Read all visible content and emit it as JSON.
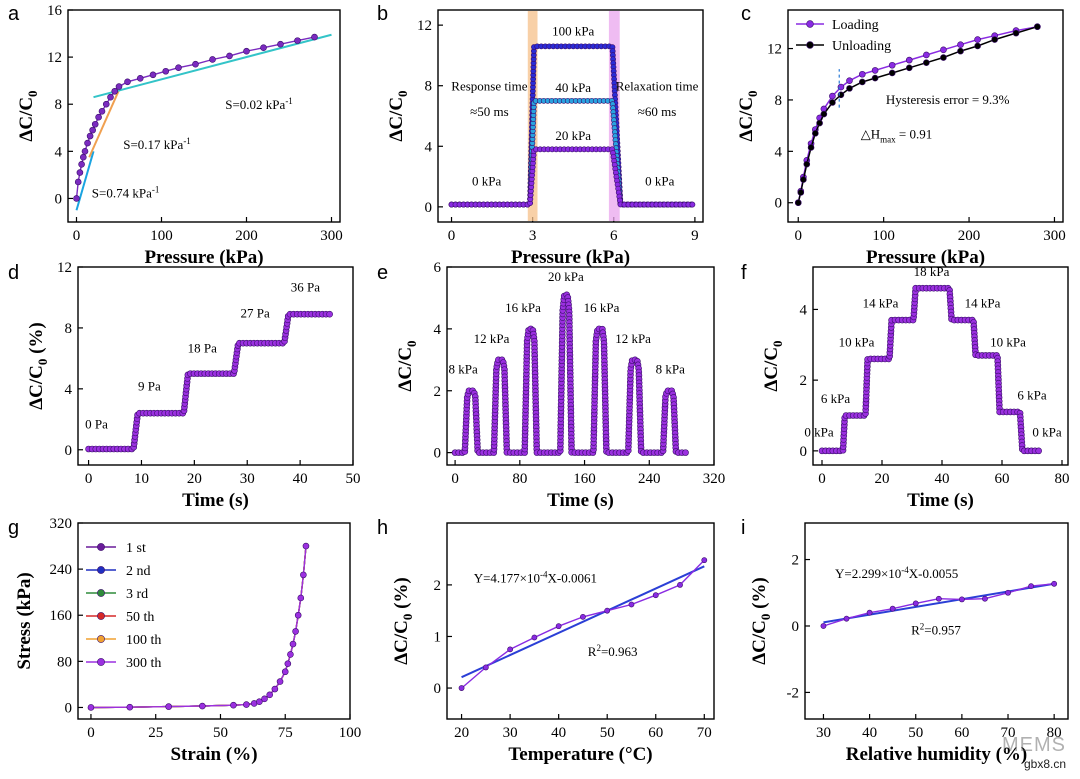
{
  "chart_data": [
    {
      "panel": "a",
      "type": "scatter",
      "xlabel": "Pressure (kPa)",
      "ylabel": "ΔC/C0",
      "xlim": [
        -10,
        310
      ],
      "ylim": [
        -2,
        16
      ],
      "xticks": [
        0,
        100,
        200,
        300
      ],
      "yticks": [
        0,
        4,
        8,
        12,
        16
      ],
      "series": [
        {
          "color": "#7a2bbf",
          "x": [
            0,
            2,
            4,
            6,
            8,
            10,
            13,
            16,
            19,
            22,
            26,
            30,
            35,
            40,
            45,
            50,
            60,
            75,
            90,
            105,
            120,
            140,
            160,
            180,
            200,
            220,
            240,
            260,
            280
          ],
          "y": [
            0,
            1.4,
            2.2,
            2.9,
            3.5,
            4.0,
            4.7,
            5.3,
            5.8,
            6.3,
            6.9,
            7.4,
            8.0,
            8.6,
            9.1,
            9.5,
            9.9,
            10.2,
            10.5,
            10.8,
            11.1,
            11.4,
            11.8,
            12.1,
            12.5,
            12.8,
            13.1,
            13.4,
            13.7
          ]
        }
      ],
      "fits": [
        {
          "x": [
            0,
            20
          ],
          "y": [
            -1.0,
            4.0
          ],
          "color": "#1aa3e0"
        },
        {
          "x": [
            15,
            50
          ],
          "y": [
            3.5,
            9.2
          ],
          "color": "#f0a050"
        },
        {
          "x": [
            20,
            300
          ],
          "y": [
            8.6,
            13.9
          ],
          "color": "#33c4c8"
        }
      ],
      "annotations": [
        {
          "text": "S=0.74 kPa",
          "sup": "-1",
          "x": 18,
          "y": 0.1,
          "color": "#1aa3e0"
        },
        {
          "text": "S=0.17 kPa",
          "sup": "-1",
          "x": 55,
          "y": 4.2,
          "color": "#f0a050"
        },
        {
          "text": "S=0.02 kPa",
          "sup": "-1",
          "x": 175,
          "y": 7.6,
          "color": "#33c4c8"
        }
      ]
    },
    {
      "panel": "b",
      "type": "line",
      "xlabel": "Pressure (kPa)",
      "ylabel": "ΔC/C0",
      "xlim": [
        -0.5,
        9.3
      ],
      "ylim": [
        -1,
        13
      ],
      "xticks": [
        0,
        3,
        6,
        9
      ],
      "yticks": [
        0,
        4,
        8,
        12
      ],
      "series": [
        {
          "name": "100 kPa",
          "level": 10.6,
          "color": "#2b2bd6"
        },
        {
          "name": "40 kPa",
          "level": 7.0,
          "color": "#29a3e0"
        },
        {
          "name": "20 kPa",
          "level": 3.8,
          "color": "#8a2be2"
        }
      ],
      "baseline": 0.15,
      "rise": [
        2.9,
        3.05
      ],
      "fall": [
        5.95,
        6.25
      ],
      "annotations": [
        {
          "text": "100 kPa",
          "x": 4.5,
          "y": 11.3
        },
        {
          "text": "40 kPa",
          "x": 4.5,
          "y": 7.6
        },
        {
          "text": "20 kPa",
          "x": 4.5,
          "y": 4.4
        },
        {
          "text": "0 kPa",
          "x": 1.3,
          "y": 1.4
        },
        {
          "text": "0 kPa",
          "x": 7.7,
          "y": 1.4
        },
        {
          "text": "Response time",
          "x": 1.4,
          "y": 7.7
        },
        {
          "text": "≈50 ms",
          "x": 1.4,
          "y": 6.0
        },
        {
          "text": "Relaxation time",
          "x": 7.6,
          "y": 7.7
        },
        {
          "text": "≈60 ms",
          "x": 7.6,
          "y": 6.0
        }
      ],
      "bands": [
        {
          "x": [
            2.82,
            3.18
          ],
          "color": "#f5c08a"
        },
        {
          "x": [
            5.82,
            6.22
          ],
          "color": "#e9a6ee"
        }
      ]
    },
    {
      "panel": "c",
      "type": "line",
      "xlabel": "Pressure (kPa)",
      "ylabel": "ΔC/C0",
      "xlim": [
        -12,
        310
      ],
      "ylim": [
        -1.5,
        15
      ],
      "xticks": [
        0,
        100,
        200,
        300
      ],
      "yticks": [
        0,
        4,
        8,
        12
      ],
      "series": [
        {
          "name": "Loading",
          "color": "#8a2be2",
          "x": [
            0,
            3,
            6,
            10,
            15,
            20,
            25,
            30,
            40,
            50,
            60,
            75,
            90,
            110,
            130,
            150,
            170,
            190,
            210,
            230,
            255,
            280
          ],
          "y": [
            0,
            0.9,
            2.0,
            3.3,
            4.6,
            5.7,
            6.6,
            7.3,
            8.3,
            9.0,
            9.5,
            10.0,
            10.3,
            10.7,
            11.1,
            11.5,
            11.9,
            12.3,
            12.7,
            13.0,
            13.4,
            13.7
          ]
        },
        {
          "name": "Unloading",
          "color": "#000000",
          "x": [
            0,
            3,
            6,
            10,
            15,
            20,
            25,
            30,
            40,
            50,
            60,
            75,
            90,
            110,
            130,
            150,
            170,
            190,
            210,
            230,
            255,
            280
          ],
          "y": [
            0,
            0.8,
            1.8,
            3.0,
            4.3,
            5.4,
            6.2,
            6.9,
            7.8,
            8.4,
            8.9,
            9.4,
            9.7,
            10.1,
            10.5,
            10.9,
            11.3,
            11.8,
            12.2,
            12.7,
            13.2,
            13.7
          ]
        }
      ],
      "marker_x": 48,
      "annotations": [
        {
          "text": "Hysteresis error = 9.3%",
          "x": 175,
          "y": 7.7
        },
        {
          "text": "△H",
          "sub": "max",
          "tail": " = 0.91",
          "x": 115,
          "y": 5.0
        }
      ],
      "legend": "top-left"
    },
    {
      "panel": "d",
      "type": "scatter",
      "xlabel": "Time (s)",
      "ylabel": "ΔC/C0 (%)",
      "xlim": [
        -2,
        50
      ],
      "ylim": [
        -1,
        12
      ],
      "xticks": [
        0,
        10,
        20,
        30,
        40,
        50
      ],
      "yticks": [
        0,
        4,
        8,
        12
      ],
      "steps": [
        {
          "t0": 0,
          "t1": 8.5,
          "v": 0.05
        },
        {
          "t0": 9.3,
          "t1": 18,
          "v": 2.4
        },
        {
          "t0": 18.8,
          "t1": 27.5,
          "v": 5.0
        },
        {
          "t0": 28.3,
          "t1": 37,
          "v": 7.0
        },
        {
          "t0": 37.8,
          "t1": 46,
          "v": 8.9
        }
      ],
      "annotations": [
        {
          "text": "0 Pa",
          "x": 1.5,
          "y": 1.4
        },
        {
          "text": "9 Pa",
          "x": 11.5,
          "y": 3.9
        },
        {
          "text": "18 Pa",
          "x": 21.5,
          "y": 6.4
        },
        {
          "text": "27 Pa",
          "x": 31.5,
          "y": 8.7
        },
        {
          "text": "36 Pa",
          "x": 41,
          "y": 10.4
        }
      ]
    },
    {
      "panel": "e",
      "type": "scatter",
      "xlabel": "Time (s)",
      "ylabel": "ΔC/C0",
      "xlim": [
        -10,
        320
      ],
      "ylim": [
        -0.4,
        6
      ],
      "xticks": [
        0,
        80,
        160,
        240,
        320
      ],
      "yticks": [
        0,
        2,
        4,
        6
      ],
      "pulses": [
        {
          "t0": 12,
          "t1": 28,
          "v": 2.0
        },
        {
          "t0": 48,
          "t1": 64,
          "v": 3.0
        },
        {
          "t0": 86,
          "t1": 101,
          "v": 4.0
        },
        {
          "t0": 130,
          "t1": 144,
          "v": 5.1
        },
        {
          "t0": 171,
          "t1": 187,
          "v": 4.0
        },
        {
          "t0": 214,
          "t1": 230,
          "v": 3.0
        },
        {
          "t0": 257,
          "t1": 273,
          "v": 2.0
        }
      ],
      "annotations": [
        {
          "text": "8 kPa",
          "x": 10,
          "y": 2.55
        },
        {
          "text": "12 kPa",
          "x": 45,
          "y": 3.55
        },
        {
          "text": "16 kPa",
          "x": 84,
          "y": 4.55
        },
        {
          "text": "20 kPa",
          "x": 137,
          "y": 5.55
        },
        {
          "text": "16 kPa",
          "x": 181,
          "y": 4.55
        },
        {
          "text": "12 kPa",
          "x": 220,
          "y": 3.55
        },
        {
          "text": "8 kPa",
          "x": 266,
          "y": 2.55
        }
      ]
    },
    {
      "panel": "f",
      "type": "scatter",
      "xlabel": "Time (s)",
      "ylabel": "ΔC/C0",
      "xlim": [
        -3,
        82
      ],
      "ylim": [
        -0.4,
        5.2
      ],
      "xticks": [
        0,
        20,
        40,
        60,
        80
      ],
      "yticks": [
        0,
        2,
        4
      ],
      "steps": [
        {
          "t0": 0,
          "t1": 7,
          "v": 0.0
        },
        {
          "t0": 7.6,
          "t1": 14.5,
          "v": 1.0
        },
        {
          "t0": 15.2,
          "t1": 22.5,
          "v": 2.6
        },
        {
          "t0": 23.2,
          "t1": 30.5,
          "v": 3.7
        },
        {
          "t0": 31.2,
          "t1": 42.5,
          "v": 4.6
        },
        {
          "t0": 43.2,
          "t1": 50.5,
          "v": 3.7
        },
        {
          "t0": 51.2,
          "t1": 58.5,
          "v": 2.7
        },
        {
          "t0": 59.2,
          "t1": 66,
          "v": 1.1
        },
        {
          "t0": 66.8,
          "t1": 73,
          "v": 0.0
        }
      ],
      "annotations": [
        {
          "text": "0 kPa",
          "x": -1,
          "y": 0.4
        },
        {
          "text": "6 kPa",
          "x": 4.5,
          "y": 1.35
        },
        {
          "text": "10 kPa",
          "x": 11.5,
          "y": 2.95
        },
        {
          "text": "14 kPa",
          "x": 19.5,
          "y": 4.05
        },
        {
          "text": "18 kPa",
          "x": 36.5,
          "y": 4.95
        },
        {
          "text": "14 kPa",
          "x": 53.5,
          "y": 4.05
        },
        {
          "text": "10 kPa",
          "x": 62,
          "y": 2.95
        },
        {
          "text": "6 kPa",
          "x": 70,
          "y": 1.45
        },
        {
          "text": "0 kPa",
          "x": 75,
          "y": 0.4
        }
      ]
    },
    {
      "panel": "g",
      "type": "line",
      "xlabel": "Strain (%)",
      "ylabel": "Stress (kPa)",
      "xlim": [
        -5,
        100
      ],
      "ylim": [
        -20,
        320
      ],
      "xticks": [
        0,
        25,
        50,
        75,
        100
      ],
      "yticks": [
        0,
        80,
        160,
        240,
        320
      ],
      "series": [
        {
          "name": "1 st",
          "color": "#6a1b9a"
        },
        {
          "name": "2 nd",
          "color": "#1f2fc0"
        },
        {
          "name": "3 rd",
          "color": "#2e8b3a"
        },
        {
          "name": "50 th",
          "color": "#d62828"
        },
        {
          "name": "100 th",
          "color": "#f0a030"
        },
        {
          "name": "300 th",
          "color": "#9b30e0"
        }
      ],
      "curve": {
        "x": [
          0,
          15,
          30,
          43,
          55,
          60,
          63,
          65,
          67,
          69,
          71,
          73,
          75,
          76,
          77,
          78,
          79,
          80,
          81,
          82,
          83
        ],
        "y": [
          0,
          0.5,
          1.5,
          2.5,
          4,
          5,
          7,
          10,
          15,
          22,
          32,
          45,
          62,
          76,
          92,
          110,
          132,
          160,
          190,
          230,
          280
        ]
      },
      "legend": "top-left"
    },
    {
      "panel": "h",
      "type": "line",
      "xlabel": "Temperature (°C)",
      "ylabel": "ΔC/C0 (%)",
      "xlim": [
        17,
        72
      ],
      "ylim": [
        -0.6,
        3.2
      ],
      "xticks": [
        20,
        30,
        40,
        50,
        60,
        70
      ],
      "yticks": [
        0,
        1,
        2
      ],
      "series": [
        {
          "color": "#8a2be2",
          "x": [
            20,
            25,
            30,
            35,
            40,
            45,
            50,
            55,
            60,
            65,
            70
          ],
          "y": [
            0,
            0.4,
            0.75,
            0.98,
            1.2,
            1.38,
            1.5,
            1.62,
            1.8,
            2.0,
            2.48
          ]
        }
      ],
      "fit": {
        "x": [
          20,
          70
        ],
        "y": [
          0.21,
          2.36
        ],
        "color": "#2b3fd6"
      },
      "annotations": [
        {
          "text": "Y=4.177×10",
          "sup": "-4",
          "tail": "X-0.0061",
          "x": 22.5,
          "y": 2.05
        },
        {
          "text": "R",
          "sup": "2",
          "tail": "=0.963",
          "x": 46,
          "y": 0.62
        }
      ]
    },
    {
      "panel": "i",
      "type": "line",
      "xlabel": "Relative humidity (%)",
      "ylabel": "ΔC/C0 (%)",
      "xlim": [
        26,
        83
      ],
      "ylim": [
        -2.8,
        3.1
      ],
      "xticks": [
        30,
        40,
        50,
        60,
        70,
        80
      ],
      "yticks": [
        -2,
        0,
        2
      ],
      "series": [
        {
          "color": "#8a2be2",
          "x": [
            30,
            35,
            40,
            45,
            50,
            55,
            60,
            65,
            70,
            75,
            80
          ],
          "y": [
            0.0,
            0.22,
            0.4,
            0.52,
            0.68,
            0.82,
            0.8,
            0.82,
            1.0,
            1.2,
            1.27
          ]
        }
      ],
      "fit": {
        "x": [
          30,
          80
        ],
        "y": [
          0.11,
          1.27
        ],
        "color": "#2b3fd6"
      },
      "annotations": [
        {
          "text": "Y=2.299×10",
          "sup": "-4",
          "tail": "X-0.0055",
          "x": 32.5,
          "y": 1.45
        },
        {
          "text": "R",
          "sup": "2",
          "tail": "=0.957",
          "x": 49,
          "y": -0.25
        }
      ]
    }
  ],
  "watermark": {
    "title": "MEMS",
    "site": "gbx8.cn"
  }
}
